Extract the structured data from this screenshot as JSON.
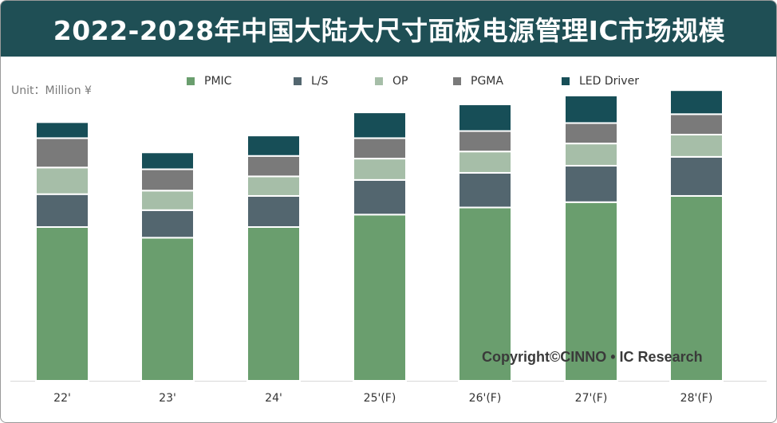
{
  "title": "2022-2028年中国大陆大尺寸面板电源管理IC市场规模",
  "unit": "Unit：Million ¥",
  "copyright": "Copyright©CINNO • IC Research",
  "colors": {
    "title_bg": "#1f4f55",
    "PMIC": "#6a9e6e",
    "L/S": "#53666f",
    "OP": "#a6bea8",
    "PGMA": "#7a7a7a",
    "LED Driver": "#174e57"
  },
  "chart_data": {
    "type": "bar",
    "stacked": true,
    "categories": [
      "22'",
      "23'",
      "24'",
      "25'(F)",
      "26'(F)",
      "27'(F)",
      "28'(F)"
    ],
    "series": [
      {
        "name": "PMIC",
        "values": [
          173,
          161,
          173,
          187,
          195,
          201,
          208
        ]
      },
      {
        "name": "L/S",
        "values": [
          37,
          31,
          35,
          39,
          39,
          41,
          44
        ]
      },
      {
        "name": "OP",
        "values": [
          30,
          22,
          22,
          24,
          24,
          25,
          25
        ]
      },
      {
        "name": "PGMA",
        "values": [
          33,
          24,
          23,
          23,
          23,
          23,
          23
        ]
      },
      {
        "name": "LED Driver",
        "values": [
          18,
          19,
          23,
          29,
          30,
          31,
          27
        ]
      }
    ],
    "ylim": [
      0,
      320
    ],
    "grid": false,
    "legend_position": "top"
  }
}
